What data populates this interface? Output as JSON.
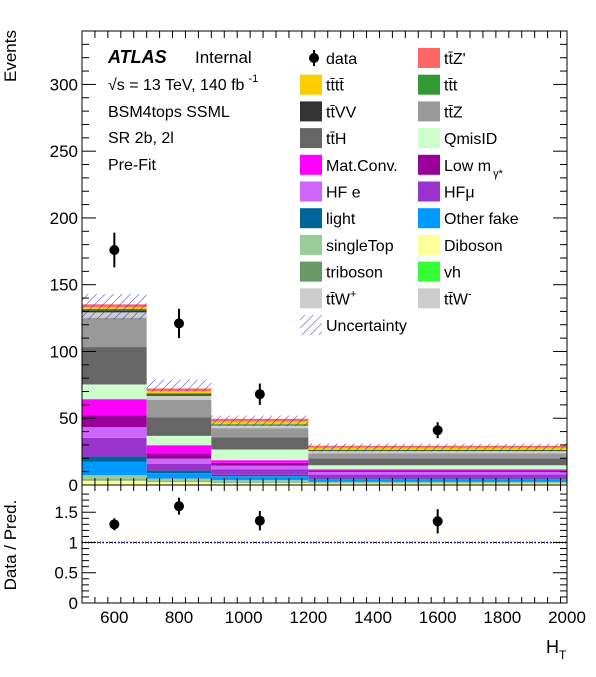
{
  "chart_data": [
    {
      "type": "stacked-bar",
      "panel": "main",
      "x_label": "H",
      "x_label_sub": "T",
      "y_label": "Events",
      "xlim": [
        500,
        2000
      ],
      "ylim": [
        0,
        340
      ],
      "x_ticks": [
        600,
        800,
        1000,
        1200,
        1400,
        1600,
        1800,
        2000
      ],
      "y_ticks": [
        0,
        50,
        100,
        150,
        200,
        250,
        300
      ],
      "bins": [
        [
          500,
          700
        ],
        [
          700,
          900
        ],
        [
          900,
          1200
        ],
        [
          1200,
          2000
        ]
      ],
      "colors": {
        "ttZprime": "#ff6666",
        "tttt": "#ffcc00",
        "ttt": "#339933",
        "ttVV": "#333333",
        "ttZ": "#999999",
        "ttH": "#666666",
        "QmisID": "#ccffcc",
        "MatConv": "#ff00ff",
        "LowMgamma": "#990099",
        "HFe": "#cc66ff",
        "HFmu": "#9933cc",
        "light": "#006699",
        "OtherFake": "#0099ff",
        "singleTop": "#99cc99",
        "Diboson": "#ffff99",
        "triboson": "#669966",
        "vh": "#33ff33",
        "ttWplus": "#cccccc",
        "ttWminus": "#cccccc",
        "data": "#000000",
        "uncertainty": "#3333cc"
      },
      "stack_order": [
        "vh",
        "Diboson",
        "triboson",
        "singleTop",
        "OtherFake",
        "light",
        "HFmu",
        "HFe",
        "LowMgamma",
        "MatConv",
        "QmisID",
        "ttH",
        "ttZ",
        "ttWminus",
        "ttWplus",
        "ttVV",
        "ttt",
        "tttt",
        "ttZprime"
      ],
      "series": [
        {
          "key": "vh",
          "values": [
            0.3,
            0.2,
            0.1,
            0.1
          ]
        },
        {
          "key": "Diboson",
          "values": [
            3,
            2,
            1.5,
            1
          ]
        },
        {
          "key": "triboson",
          "values": [
            1,
            0.6,
            0.5,
            0.2
          ]
        },
        {
          "key": "singleTop",
          "values": [
            3,
            2,
            1.5,
            1
          ]
        },
        {
          "key": "OtherFake",
          "values": [
            10,
            4,
            3,
            2
          ]
        },
        {
          "key": "light",
          "values": [
            4,
            2,
            1,
            0.5
          ]
        },
        {
          "key": "HFmu",
          "values": [
            14,
            5,
            4,
            3
          ]
        },
        {
          "key": "HFe",
          "values": [
            8,
            4,
            3,
            2
          ]
        },
        {
          "key": "LowMgamma",
          "values": [
            9,
            4,
            2,
            1
          ]
        },
        {
          "key": "MatConv",
          "values": [
            12,
            6,
            2,
            1
          ]
        },
        {
          "key": "QmisID",
          "values": [
            11,
            7,
            8,
            3
          ]
        },
        {
          "key": "ttH",
          "values": [
            28,
            14,
            9,
            5
          ]
        },
        {
          "key": "ttZ",
          "values": [
            22,
            13,
            7,
            4
          ]
        },
        {
          "key": "ttWminus",
          "values": [
            2,
            1.5,
            1,
            0.8
          ]
        },
        {
          "key": "ttWplus",
          "values": [
            2,
            1.5,
            1,
            0.8
          ]
        },
        {
          "key": "ttVV",
          "values": [
            1.5,
            1,
            0.5,
            0.5
          ]
        },
        {
          "key": "ttt",
          "values": [
            1,
            1,
            0.5,
            0.5
          ]
        },
        {
          "key": "tttt",
          "values": [
            1.5,
            1.5,
            2,
            1.5
          ]
        },
        {
          "key": "ttZprime",
          "values": [
            2,
            2,
            2,
            1.5
          ]
        }
      ],
      "uncertainty": [
        {
          "lo": 124,
          "hi": 143
        },
        {
          "lo": 70,
          "hi": 79
        },
        {
          "lo": 44,
          "hi": 52
        },
        {
          "lo": 25,
          "hi": 31
        }
      ],
      "data_points": [
        {
          "x": 600,
          "y": 176,
          "err": 13
        },
        {
          "x": 800,
          "y": 121,
          "err": 11
        },
        {
          "x": 1050,
          "y": 68,
          "err": 8
        },
        {
          "x": 1600,
          "y": 41,
          "err": 6
        }
      ],
      "annotations": {
        "atlas": "ATLAS",
        "internal": "Internal",
        "energy": "√s = 13 TeV, 140 fb",
        "energy_sup": "-1",
        "line1": "BSM4tops SSML",
        "line2": "SR 2b, 2l",
        "line3": "Pre-Fit"
      },
      "legend": [
        {
          "key": "data",
          "label": "data",
          "marker": "point"
        },
        {
          "key": "ttZprime",
          "label": "tt̄Z'",
          "marker": "box"
        },
        {
          "key": "tttt",
          "label": "tt̄tt̄",
          "marker": "box"
        },
        {
          "key": "ttt",
          "label": "tt̄t",
          "marker": "box"
        },
        {
          "key": "ttVV",
          "label": "tt̄VV",
          "marker": "box"
        },
        {
          "key": "ttZ",
          "label": "tt̄Z",
          "marker": "box"
        },
        {
          "key": "ttH",
          "label": "tt̄H",
          "marker": "box"
        },
        {
          "key": "QmisID",
          "label": "QmisID",
          "marker": "box"
        },
        {
          "key": "MatConv",
          "label": "Mat.Conv.",
          "marker": "box"
        },
        {
          "key": "LowMgamma",
          "label": "Low m",
          "sub": "γ*",
          "marker": "box"
        },
        {
          "key": "HFe",
          "label": "HF e",
          "marker": "box"
        },
        {
          "key": "HFmu",
          "label": "HFμ",
          "marker": "box"
        },
        {
          "key": "light",
          "label": "light",
          "marker": "box"
        },
        {
          "key": "OtherFake",
          "label": "Other fake",
          "marker": "box"
        },
        {
          "key": "singleTop",
          "label": "singleTop",
          "marker": "box"
        },
        {
          "key": "Diboson",
          "label": "Diboson",
          "marker": "box"
        },
        {
          "key": "triboson",
          "label": "triboson",
          "marker": "box"
        },
        {
          "key": "vh",
          "label": "vh",
          "marker": "box"
        },
        {
          "key": "ttWplus",
          "label": "tt̄W",
          "sup": "+",
          "marker": "box"
        },
        {
          "key": "ttWminus",
          "label": "tt̄W",
          "sup": "-",
          "marker": "box"
        },
        {
          "key": "uncertainty",
          "label": "Uncertainty",
          "marker": "hatch"
        }
      ]
    },
    {
      "type": "scatter",
      "panel": "ratio",
      "y_label": "Data / Pred.",
      "x_label": "H",
      "x_label_sub": "T",
      "xlim": [
        500,
        2000
      ],
      "ylim": [
        0,
        1.95
      ],
      "y_ticks": [
        0,
        0.5,
        1,
        1.5
      ],
      "x_ticks": [
        600,
        800,
        1000,
        1200,
        1400,
        1600,
        1800,
        2000
      ],
      "reference_line": 1,
      "points": [
        {
          "x": 600,
          "y": 1.3,
          "err": 0.1
        },
        {
          "x": 800,
          "y": 1.6,
          "err": 0.14
        },
        {
          "x": 1050,
          "y": 1.36,
          "err": 0.16
        },
        {
          "x": 1600,
          "y": 1.35,
          "err": 0.2
        }
      ]
    }
  ]
}
